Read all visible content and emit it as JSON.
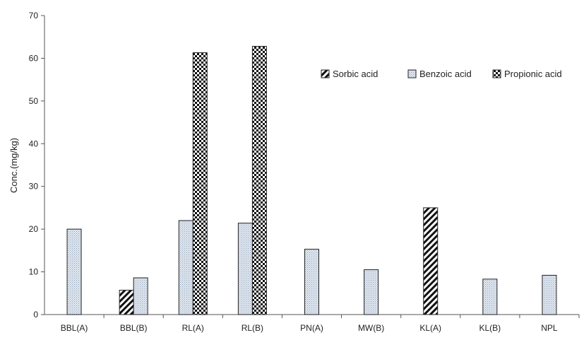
{
  "chart_data": {
    "type": "bar",
    "title": "",
    "xlabel": "",
    "ylabel": "Conc.(mg/kg)",
    "ylim": [
      0,
      70
    ],
    "yticks": [
      0,
      10,
      20,
      30,
      40,
      50,
      60,
      70
    ],
    "grid": false,
    "legend_position": "top-right",
    "categories": [
      "BBL(A)",
      "BBL(B)",
      "RL(A)",
      "RL(B)",
      "PN(A)",
      "MW(B)",
      "KL(A)",
      "KL(B)",
      "NPL"
    ],
    "series": [
      {
        "name": "Sorbic acid",
        "pattern": "diagonal-hatch",
        "values": [
          null,
          5.7,
          null,
          null,
          null,
          null,
          25.0,
          null,
          null
        ]
      },
      {
        "name": "Benzoic acid",
        "pattern": "light-dots",
        "values": [
          20.0,
          8.6,
          22.0,
          21.4,
          15.3,
          10.5,
          null,
          8.3,
          9.2
        ]
      },
      {
        "name": "Propionic acid",
        "pattern": "checkerboard",
        "values": [
          null,
          null,
          61.3,
          62.8,
          null,
          null,
          null,
          null,
          null
        ]
      }
    ]
  }
}
